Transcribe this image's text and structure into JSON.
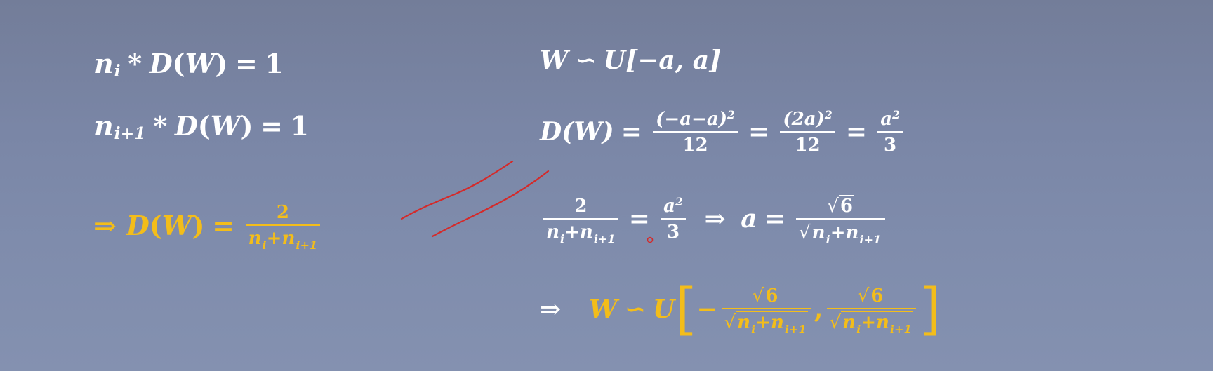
{
  "colors": {
    "background": "#7a86a6",
    "text": "#ffffff",
    "highlight": "#f3bd1a",
    "annotation": "#d42a2a"
  },
  "left": {
    "eq1": {
      "n": "n",
      "sub": "i",
      "op": "*",
      "D": "D",
      "lp": "(",
      "W": "W",
      "rp": ")",
      "eq": "=",
      "rhs": "1"
    },
    "eq2": {
      "n": "n",
      "sub": "i+1",
      "op": "*",
      "D": "D",
      "lp": "(",
      "W": "W",
      "rp": ")",
      "eq": "=",
      "rhs": "1"
    },
    "result": {
      "arrow": "⇒",
      "D": "D",
      "lp": "(",
      "W": "W",
      "rp": ")",
      "eq": "=",
      "num": "2",
      "n1": "n",
      "s1": "i",
      "plus": "+",
      "n2": "n",
      "s2": "i+1"
    }
  },
  "right": {
    "dist": {
      "W": "W",
      "tilde": "∽",
      "U": "U",
      "text": "[−a,  a]"
    },
    "variance": {
      "lhs": "D(W)",
      "eq1": "=",
      "f1_num": "(−a−a)",
      "f1_exp": "2",
      "f1_den": "12",
      "eq2": "=",
      "f2_num": "(2a)",
      "f2_exp": "2",
      "f2_den": "12",
      "eq3": "=",
      "f3_num": "a",
      "f3_exp": "2",
      "f3_den": "3"
    },
    "solve": {
      "num": "2",
      "n1": "n",
      "s1": "i",
      "plus": "+",
      "n2": "n",
      "s2": "i+1",
      "eq": "=",
      "f_num": "a",
      "f_exp": "2",
      "f_den": "3",
      "arrow": "⇒",
      "a": "a",
      "eq2": "=",
      "sqrt_num": "6",
      "rn1": "n",
      "rs1": "i",
      "rplus": "+",
      "rn2": "n",
      "rs2": "i+1"
    },
    "final": {
      "arrow": "⇒",
      "W": "W",
      "tilde": "∽",
      "U": "U",
      "lb": "[",
      "minus": "−",
      "comma": ",",
      "rb": "]",
      "sqrt_num": "6",
      "rn1": "n",
      "rs1": "i",
      "rplus": "+",
      "rn2": "n",
      "rs2": "i+1"
    }
  }
}
